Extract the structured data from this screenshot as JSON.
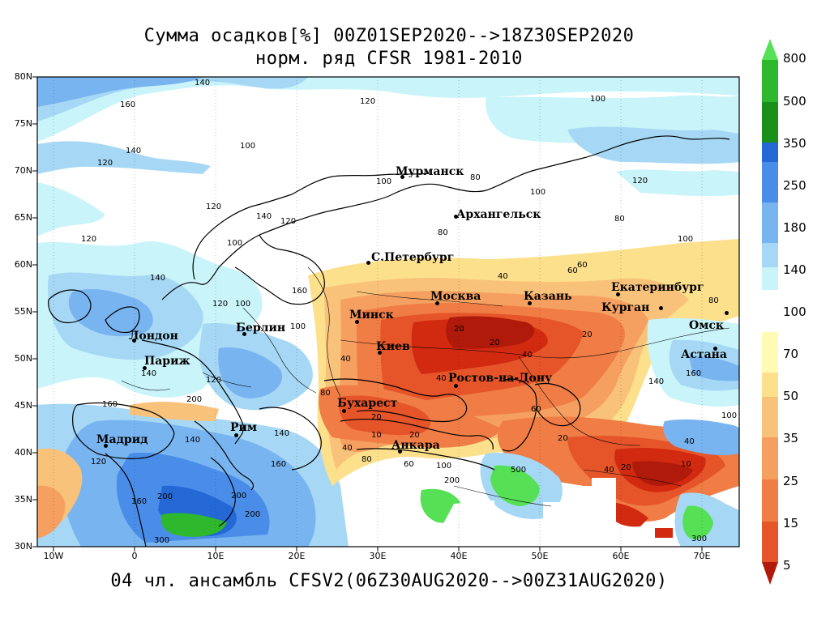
{
  "title_line1": "Сумма осадков[%] 00Z01SEP2020-->18Z30SEP2020",
  "title_line2": "норм. ряд CFSR 1981-2010",
  "footer": "04 чл. ансамбль CFSV2(06Z30AUG2020-->00Z31AUG2020)",
  "map": {
    "lat_ticks": [
      "80N",
      "75N",
      "70N",
      "65N",
      "60N",
      "55N",
      "50N",
      "45N",
      "40N",
      "35N",
      "30N"
    ],
    "lon_ticks": [
      "10W",
      "0",
      "10E",
      "20E",
      "30E",
      "40E",
      "50E",
      "60E",
      "70E"
    ],
    "cities": [
      {
        "name": "Мурманск"
      },
      {
        "name": "Архангельск"
      },
      {
        "name": "С.Петербург"
      },
      {
        "name": "Москва"
      },
      {
        "name": "Казань"
      },
      {
        "name": "Екатеринбург"
      },
      {
        "name": "Курган"
      },
      {
        "name": "Омск"
      },
      {
        "name": "Астана"
      },
      {
        "name": "Минск"
      },
      {
        "name": "Киев"
      },
      {
        "name": "Ростов-на-Дону"
      },
      {
        "name": "Бухарест"
      },
      {
        "name": "Анкара"
      },
      {
        "name": "Берлин"
      },
      {
        "name": "Лондон"
      },
      {
        "name": "Париж"
      },
      {
        "name": "Рим"
      },
      {
        "name": "Мадрид"
      }
    ],
    "contour_labels": [
      "140",
      "160",
      "120",
      "100",
      "140",
      "120",
      "100",
      "80",
      "100",
      "120",
      "100",
      "80",
      "120",
      "140",
      "120",
      "100",
      "80",
      "100",
      "60",
      "120",
      "160",
      "100",
      "140",
      "120",
      "100",
      "40",
      "20",
      "20",
      "40",
      "60",
      "80",
      "20",
      "40",
      "40",
      "20",
      "10",
      "20",
      "40",
      "60",
      "80",
      "140",
      "160",
      "200",
      "140",
      "160",
      "200",
      "300",
      "120",
      "140",
      "160",
      "200",
      "80",
      "100",
      "200",
      "500",
      "40",
      "20",
      "10",
      "20",
      "40",
      "300",
      "100",
      "60",
      "120",
      "140",
      "160",
      "200"
    ]
  },
  "colorbar": {
    "labels": [
      "800",
      "500",
      "350",
      "250",
      "180",
      "140",
      "100",
      "70",
      "50",
      "35",
      "25",
      "15",
      "5"
    ],
    "colors": {
      "800": "#55e055",
      "500": "#2eb82e",
      "350": "#1a8f1a",
      "250": "#2468d6",
      "180": "#4a8de8",
      "140": "#78b4f0",
      "100a": "#a6d8f5",
      "100b": "#c8f4fa",
      "70": "#fffab4",
      "50a": "#fce08c",
      "50b": "#f9c27a",
      "35": "#f5a060",
      "25": "#ef7d45",
      "15": "#e6552a",
      "5": "#d12a10",
      "5b": "#b01a0a"
    }
  }
}
